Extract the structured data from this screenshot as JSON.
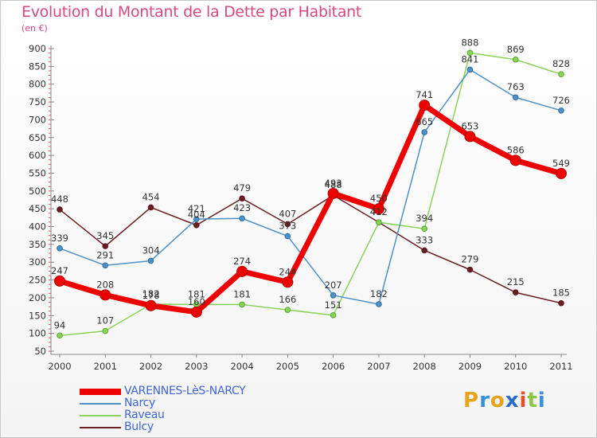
{
  "title": "Evolution du Montant de la Dette par Habitant",
  "subtitle": "(en €)",
  "logo": {
    "text": "Proxiti",
    "letter_colors": [
      "#e8a31d",
      "#3b8fd4",
      "#e8a31d",
      "#2a6fbf",
      "#e84f2b",
      "#8cc63f",
      "#3b8fd4"
    ]
  },
  "chart_data": {
    "type": "line",
    "title": "Evolution du Montant de la Dette par Habitant",
    "ylabel": "(en €)",
    "x": [
      "2000",
      "2001",
      "2002",
      "2003",
      "2004",
      "2005",
      "2006",
      "2007",
      "2008",
      "2009",
      "2010",
      "2011"
    ],
    "ylim": [
      50,
      900
    ],
    "yticks": [
      50,
      100,
      150,
      200,
      250,
      300,
      350,
      400,
      450,
      500,
      550,
      600,
      650,
      700,
      750,
      800,
      850,
      900
    ],
    "grid": false,
    "legend_position": "bottom-left",
    "series": [
      {
        "name": "Bulcy",
        "color": "#6b1e22",
        "values": [
          448,
          345,
          454,
          404,
          479,
          407,
          488,
          412,
          333,
          279,
          215,
          185
        ]
      },
      {
        "name": "Raveau",
        "color": "#88d45a",
        "values": [
          94,
          107,
          182,
          181,
          181,
          166,
          151,
          412,
          394,
          888,
          869,
          828
        ]
      },
      {
        "name": "Narcy",
        "color": "#4e91c9",
        "values": [
          339,
          291,
          304,
          421,
          423,
          373,
          207,
          182,
          665,
          841,
          763,
          726
        ]
      },
      {
        "name": "VARENNES-LèS-NARCY",
        "color": "#ee0000",
        "values": [
          247,
          208,
          178,
          160,
          274,
          244,
          493,
          450,
          741,
          653,
          586,
          549
        ]
      }
    ],
    "legend_order": [
      "VARENNES-LèS-NARCY",
      "Narcy",
      "Raveau",
      "Bulcy"
    ]
  }
}
